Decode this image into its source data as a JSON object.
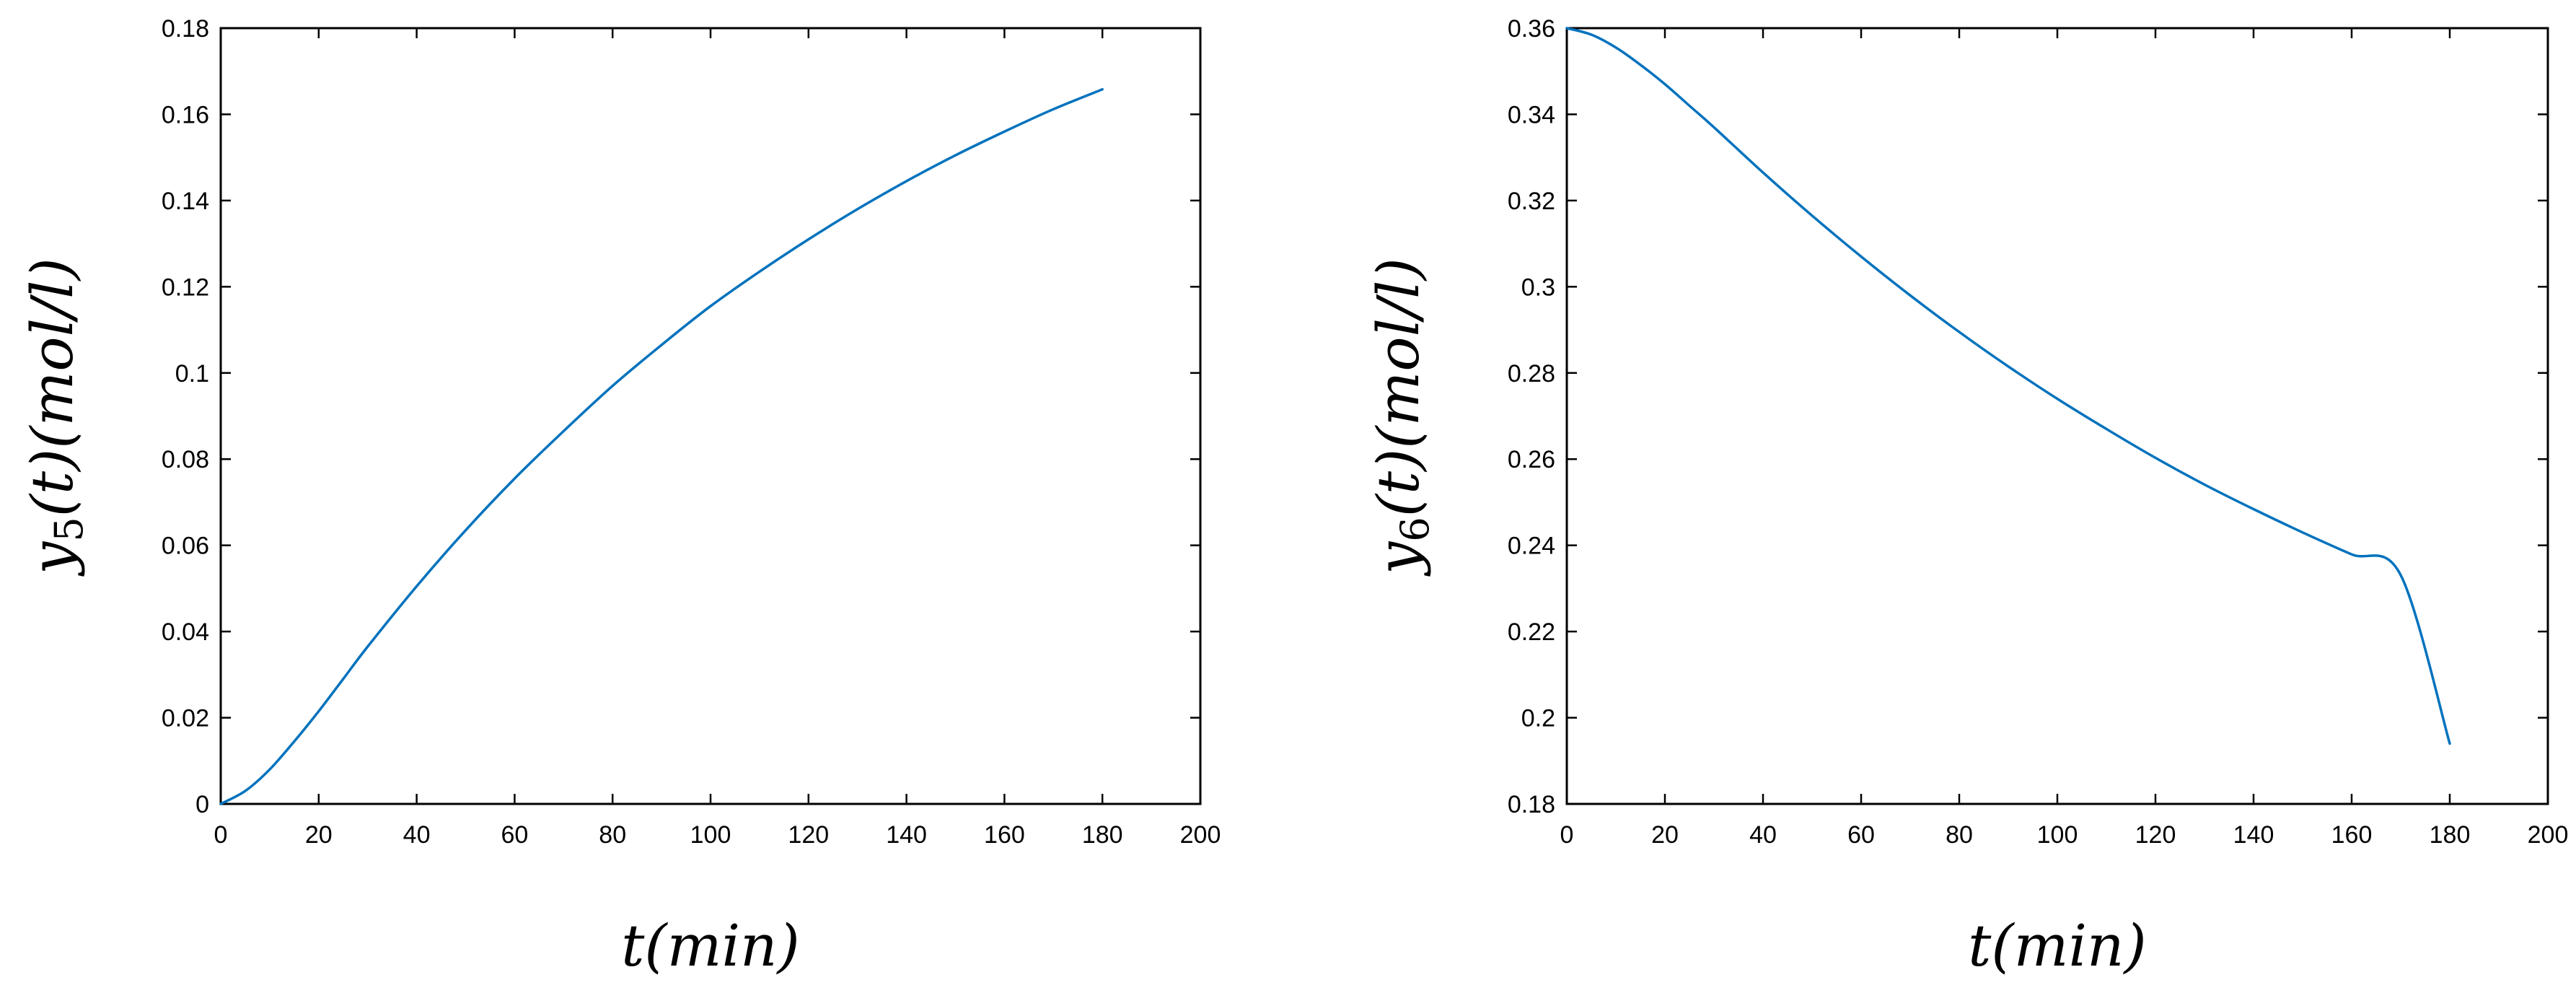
{
  "chart_data": [
    {
      "type": "line",
      "xlabel": "t(min)",
      "ylabel": "y5(t)(mol/l)",
      "ylabel_parts": {
        "var": "y",
        "sub": "5",
        "rest": "(t)(mol/l)"
      },
      "xlim": [
        0,
        200
      ],
      "ylim": [
        0,
        0.18
      ],
      "xticks": [
        0,
        20,
        40,
        60,
        80,
        100,
        120,
        140,
        160,
        180,
        200
      ],
      "yticks": [
        0,
        0.02,
        0.04,
        0.06,
        0.08,
        0.1,
        0.12,
        0.14,
        0.16,
        0.18
      ],
      "xtick_labels": [
        "0",
        "20",
        "40",
        "60",
        "80",
        "100",
        "120",
        "140",
        "160",
        "180",
        "200"
      ],
      "ytick_labels": [
        "0",
        "0.02",
        "0.04",
        "0.06",
        "0.08",
        "0.1",
        "0.12",
        "0.14",
        "0.16",
        "0.18"
      ],
      "grid": false,
      "series": [
        {
          "color": "#0072BD",
          "x": [
            0,
            5,
            10,
            15,
            20,
            25,
            30,
            40,
            50,
            60,
            70,
            80,
            90,
            100,
            110,
            120,
            130,
            140,
            150,
            160,
            170,
            180
          ],
          "y": [
            0,
            0.003,
            0.008,
            0.0145,
            0.0215,
            0.029,
            0.0365,
            0.0505,
            0.0635,
            0.0755,
            0.0865,
            0.097,
            0.1065,
            0.1155,
            0.1235,
            0.131,
            0.138,
            0.1445,
            0.1505,
            0.156,
            0.1612,
            0.1658
          ]
        }
      ]
    },
    {
      "type": "line",
      "xlabel": "t(min)",
      "ylabel": "y6(t)(mol/l)",
      "ylabel_parts": {
        "var": "y",
        "sub": "6",
        "rest": "(t)(mol/l)"
      },
      "xlim": [
        0,
        200
      ],
      "ylim": [
        0.18,
        0.36
      ],
      "xticks": [
        0,
        20,
        40,
        60,
        80,
        100,
        120,
        140,
        160,
        180,
        200
      ],
      "yticks": [
        0.18,
        0.2,
        0.22,
        0.24,
        0.26,
        0.28,
        0.3,
        0.32,
        0.34,
        0.36
      ],
      "xtick_labels": [
        "0",
        "20",
        "40",
        "60",
        "80",
        "100",
        "120",
        "140",
        "160",
        "180",
        "200"
      ],
      "ytick_labels": [
        "0.18",
        "0.2",
        "0.22",
        "0.24",
        "0.26",
        "0.28",
        "0.3",
        "0.32",
        "0.34",
        "0.36"
      ],
      "grid": false,
      "series": [
        {
          "color": "#0072BD",
          "x": [
            0,
            5,
            10,
            15,
            20,
            25,
            30,
            40,
            50,
            60,
            70,
            80,
            90,
            100,
            110,
            120,
            130,
            140,
            150,
            160,
            170,
            180
          ],
          "y": [
            0.36,
            0.3585,
            0.3555,
            0.3515,
            0.347,
            0.342,
            0.337,
            0.3265,
            0.3165,
            0.307,
            0.298,
            0.2895,
            0.2815,
            0.274,
            0.267,
            0.2603,
            0.2541,
            0.2484,
            0.243,
            0.2379,
            0.2331,
            0.194
          ]
        }
      ]
    }
  ]
}
